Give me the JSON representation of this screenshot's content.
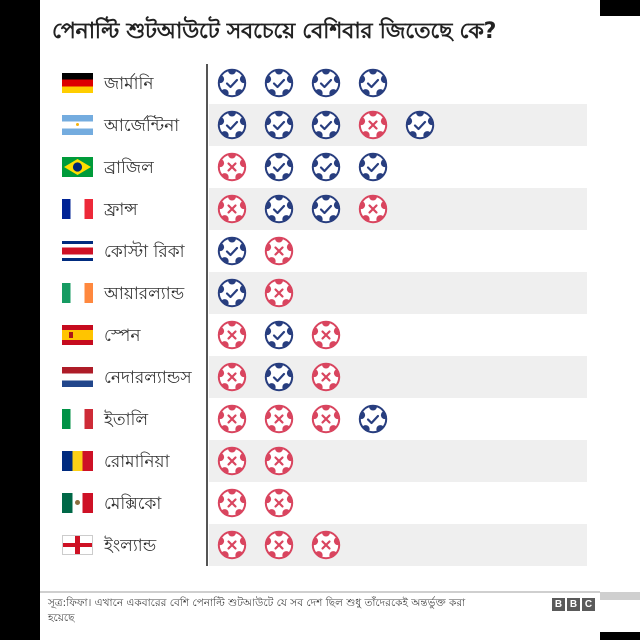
{
  "title": "পেনাল্টি শুটআউটে সবচেয়ে বেশিবার জিতেছে কে?",
  "colors": {
    "win": "#283e7f",
    "loss": "#d9455f",
    "stripe": "#efefef",
    "divider": "#555555"
  },
  "legend": {
    "win_icon": "football-check-icon",
    "loss_icon": "football-cross-icon"
  },
  "rows": [
    {
      "country": "জার্মানি",
      "flag": "germany",
      "results": [
        "W",
        "W",
        "W",
        "W"
      ]
    },
    {
      "country": "আর্জেন্টিনা",
      "flag": "argentina",
      "results": [
        "W",
        "W",
        "W",
        "L",
        "W"
      ]
    },
    {
      "country": "ব্রাজিল",
      "flag": "brazil",
      "results": [
        "L",
        "W",
        "W",
        "W"
      ]
    },
    {
      "country": "ফ্রান্স",
      "flag": "france",
      "results": [
        "L",
        "W",
        "W",
        "L"
      ]
    },
    {
      "country": "কোস্টা রিকা",
      "flag": "costa-rica",
      "results": [
        "W",
        "L"
      ]
    },
    {
      "country": "আয়ারল্যান্ড",
      "flag": "ireland",
      "results": [
        "W",
        "L"
      ]
    },
    {
      "country": "স্পেন",
      "flag": "spain",
      "results": [
        "L",
        "W",
        "L"
      ]
    },
    {
      "country": "নেদারল্যান্ডস",
      "flag": "netherlands",
      "results": [
        "L",
        "W",
        "L"
      ]
    },
    {
      "country": "ইতালি",
      "flag": "italy",
      "results": [
        "L",
        "L",
        "L",
        "W"
      ]
    },
    {
      "country": "রোমানিয়া",
      "flag": "romania",
      "results": [
        "L",
        "L"
      ]
    },
    {
      "country": "মেক্সিকো",
      "flag": "mexico",
      "results": [
        "L",
        "L"
      ]
    },
    {
      "country": "ইংল্যান্ড",
      "flag": "england",
      "results": [
        "L",
        "L",
        "L"
      ]
    }
  ],
  "footer": {
    "source": "সূত্র:ফিফা। এখানে একবারের বেশি পেনাল্টি শুটআউটে যে সব দেশ ছিল শুধু তাঁদেরকেই অন্তর্ভুক্ত করা হয়েছে",
    "logo": [
      "B",
      "B",
      "C"
    ]
  },
  "chart_data": {
    "type": "table",
    "title": "পেনাল্টি শুটআউটে সবচেয়ে বেশিবার জিতেছে কে?",
    "columns": [
      "country",
      "shootout_results_in_order",
      "wins",
      "losses"
    ],
    "categories": [
      "জার্মানি",
      "আর্জেন্টিনা",
      "ব্রাজিল",
      "ফ্রান্স",
      "কোস্টা রিকা",
      "আয়ারল্যান্ড",
      "স্পেন",
      "নেদারল্যান্ডস",
      "ইতালি",
      "রোমানিয়া",
      "মেক্সিকো",
      "ইংল্যান্ড"
    ],
    "series": [
      {
        "name": "wins",
        "values": [
          4,
          4,
          3,
          2,
          1,
          1,
          1,
          1,
          1,
          0,
          0,
          0
        ]
      },
      {
        "name": "losses",
        "values": [
          0,
          1,
          1,
          2,
          1,
          1,
          2,
          2,
          3,
          2,
          2,
          3
        ]
      }
    ],
    "sequences": [
      [
        "W",
        "W",
        "W",
        "W"
      ],
      [
        "W",
        "W",
        "W",
        "L",
        "W"
      ],
      [
        "L",
        "W",
        "W",
        "W"
      ],
      [
        "L",
        "W",
        "W",
        "L"
      ],
      [
        "W",
        "L"
      ],
      [
        "W",
        "L"
      ],
      [
        "L",
        "W",
        "L"
      ],
      [
        "L",
        "W",
        "L"
      ],
      [
        "L",
        "L",
        "L",
        "W"
      ],
      [
        "L",
        "L"
      ],
      [
        "L",
        "L"
      ],
      [
        "L",
        "L",
        "L"
      ]
    ],
    "legend": {
      "W": "blue ball with check = win",
      "L": "red ball with cross = loss"
    },
    "source": "সূত্র:ফিফা"
  }
}
